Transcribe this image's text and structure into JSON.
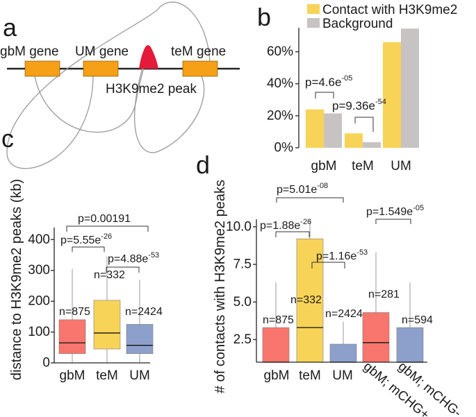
{
  "colors": {
    "contact": "#f7d358",
    "background": "#c8c3c3",
    "red": "#f8766d",
    "yellow": "#f7d358",
    "blue": "#8da0cb",
    "gene": "#f5a016",
    "peak": "#e41a3a",
    "arc": "#999999",
    "axis": "#222222"
  },
  "panel_labels": {
    "a": "a",
    "b": "b",
    "c": "c",
    "d": "d"
  },
  "panel_a": {
    "genes": [
      "gbM gene",
      "UM gene",
      "teM gene"
    ],
    "peak_label": "H3K9me2 peak"
  },
  "chart_data": [
    {
      "panel": "b",
      "type": "bar",
      "title": "",
      "legend": [
        "Contact with H3K9me2",
        "Background"
      ],
      "legend_position": "top",
      "categories": [
        "gbM",
        "teM",
        "UM"
      ],
      "series": [
        {
          "name": "Contact with H3K9me2",
          "values": [
            24,
            9,
            66
          ]
        },
        {
          "name": "Background",
          "values": [
            21.5,
            3.5,
            74.5
          ]
        }
      ],
      "ylim": [
        0,
        75
      ],
      "yticks": [
        0,
        20,
        40,
        60
      ],
      "ytick_labels": [
        "0%",
        "20%",
        "40%",
        "60%"
      ],
      "annotations": [
        {
          "base": "p=4.6e",
          "exp": "-05"
        },
        {
          "base": "p=9.36e",
          "exp": "-54"
        }
      ]
    },
    {
      "panel": "c",
      "type": "box",
      "ylabel": "distance to H3K9me2 peaks (kb)",
      "categories": [
        "gbM",
        "teM",
        "UM"
      ],
      "ylim": [
        0,
        430
      ],
      "yticks": [
        0,
        100,
        200,
        300,
        400
      ],
      "boxes": [
        {
          "n": "n=875",
          "whisker_low": 0,
          "q1": 30,
          "median": 65,
          "q3": 140,
          "whisker_high": 305
        },
        {
          "n": "n=332",
          "whisker_low": 0,
          "q1": 45,
          "median": 97,
          "q3": 203,
          "whisker_high": 345
        },
        {
          "n": "n=2424",
          "whisker_low": 0,
          "q1": 30,
          "median": 57,
          "q3": 125,
          "whisker_high": 270
        }
      ],
      "annotations": [
        {
          "base": "p=0.00191",
          "exp": ""
        },
        {
          "base": "p=5.55e",
          "exp": "-26"
        },
        {
          "base": "p=4.88e",
          "exp": "-53"
        }
      ]
    },
    {
      "panel": "d",
      "type": "box",
      "ylabel": "# of contacts with H3K9me2 peaks",
      "categories": [
        "gbM",
        "teM",
        "UM",
        "gbM; mCHG+",
        "gbM; mCHG-"
      ],
      "ylim": [
        1,
        10.5
      ],
      "yticks": [
        2.5,
        5.0,
        7.5,
        10.0
      ],
      "ytick_labels": [
        "2.5",
        "5.0",
        "7.5",
        "10.0"
      ],
      "boxes": [
        {
          "n": "n=875",
          "whisker_low": 1,
          "q1": 1,
          "median": 1,
          "q3": 3.3,
          "whisker_high": 6.3
        },
        {
          "n": "n=332",
          "whisker_low": 1,
          "q1": 1,
          "median": 3.3,
          "q3": 9.2,
          "whisker_high": 10.5
        },
        {
          "n": "n=2424",
          "whisker_low": 1,
          "q1": 1,
          "median": 1,
          "q3": 2.2,
          "whisker_high": 3.7
        },
        {
          "n": "n=281",
          "whisker_low": 1,
          "q1": 1,
          "median": 2.3,
          "q3": 4.3,
          "whisker_high": 8.3
        },
        {
          "n": "n=594",
          "whisker_low": 1,
          "q1": 1,
          "median": 1,
          "q3": 3.3,
          "whisker_high": 6.3
        }
      ],
      "annotations": [
        {
          "base": "p=5.01e",
          "exp": "-08"
        },
        {
          "base": "p=1.88e",
          "exp": "-26"
        },
        {
          "base": "p=1.16e",
          "exp": "-53"
        },
        {
          "base": "p=1.549e",
          "exp": "-05"
        }
      ]
    }
  ]
}
